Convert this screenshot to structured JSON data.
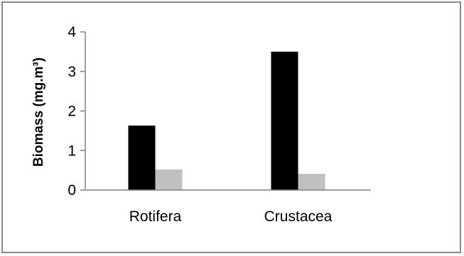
{
  "chart_data": {
    "type": "bar",
    "categories": [
      "Rotifera",
      "Crustacea"
    ],
    "series": [
      {
        "values": [
          1.63,
          3.5
        ],
        "color": "#000000"
      },
      {
        "values": [
          0.52,
          0.41
        ],
        "color": "#c0c0c0"
      }
    ],
    "title": "",
    "xlabel": "",
    "ylabel": "Biomass (mg.m³)",
    "ylim": [
      0,
      4
    ],
    "yticks": [
      "0",
      "1",
      "2",
      "3",
      "4"
    ],
    "grid": false,
    "legend": "none"
  }
}
